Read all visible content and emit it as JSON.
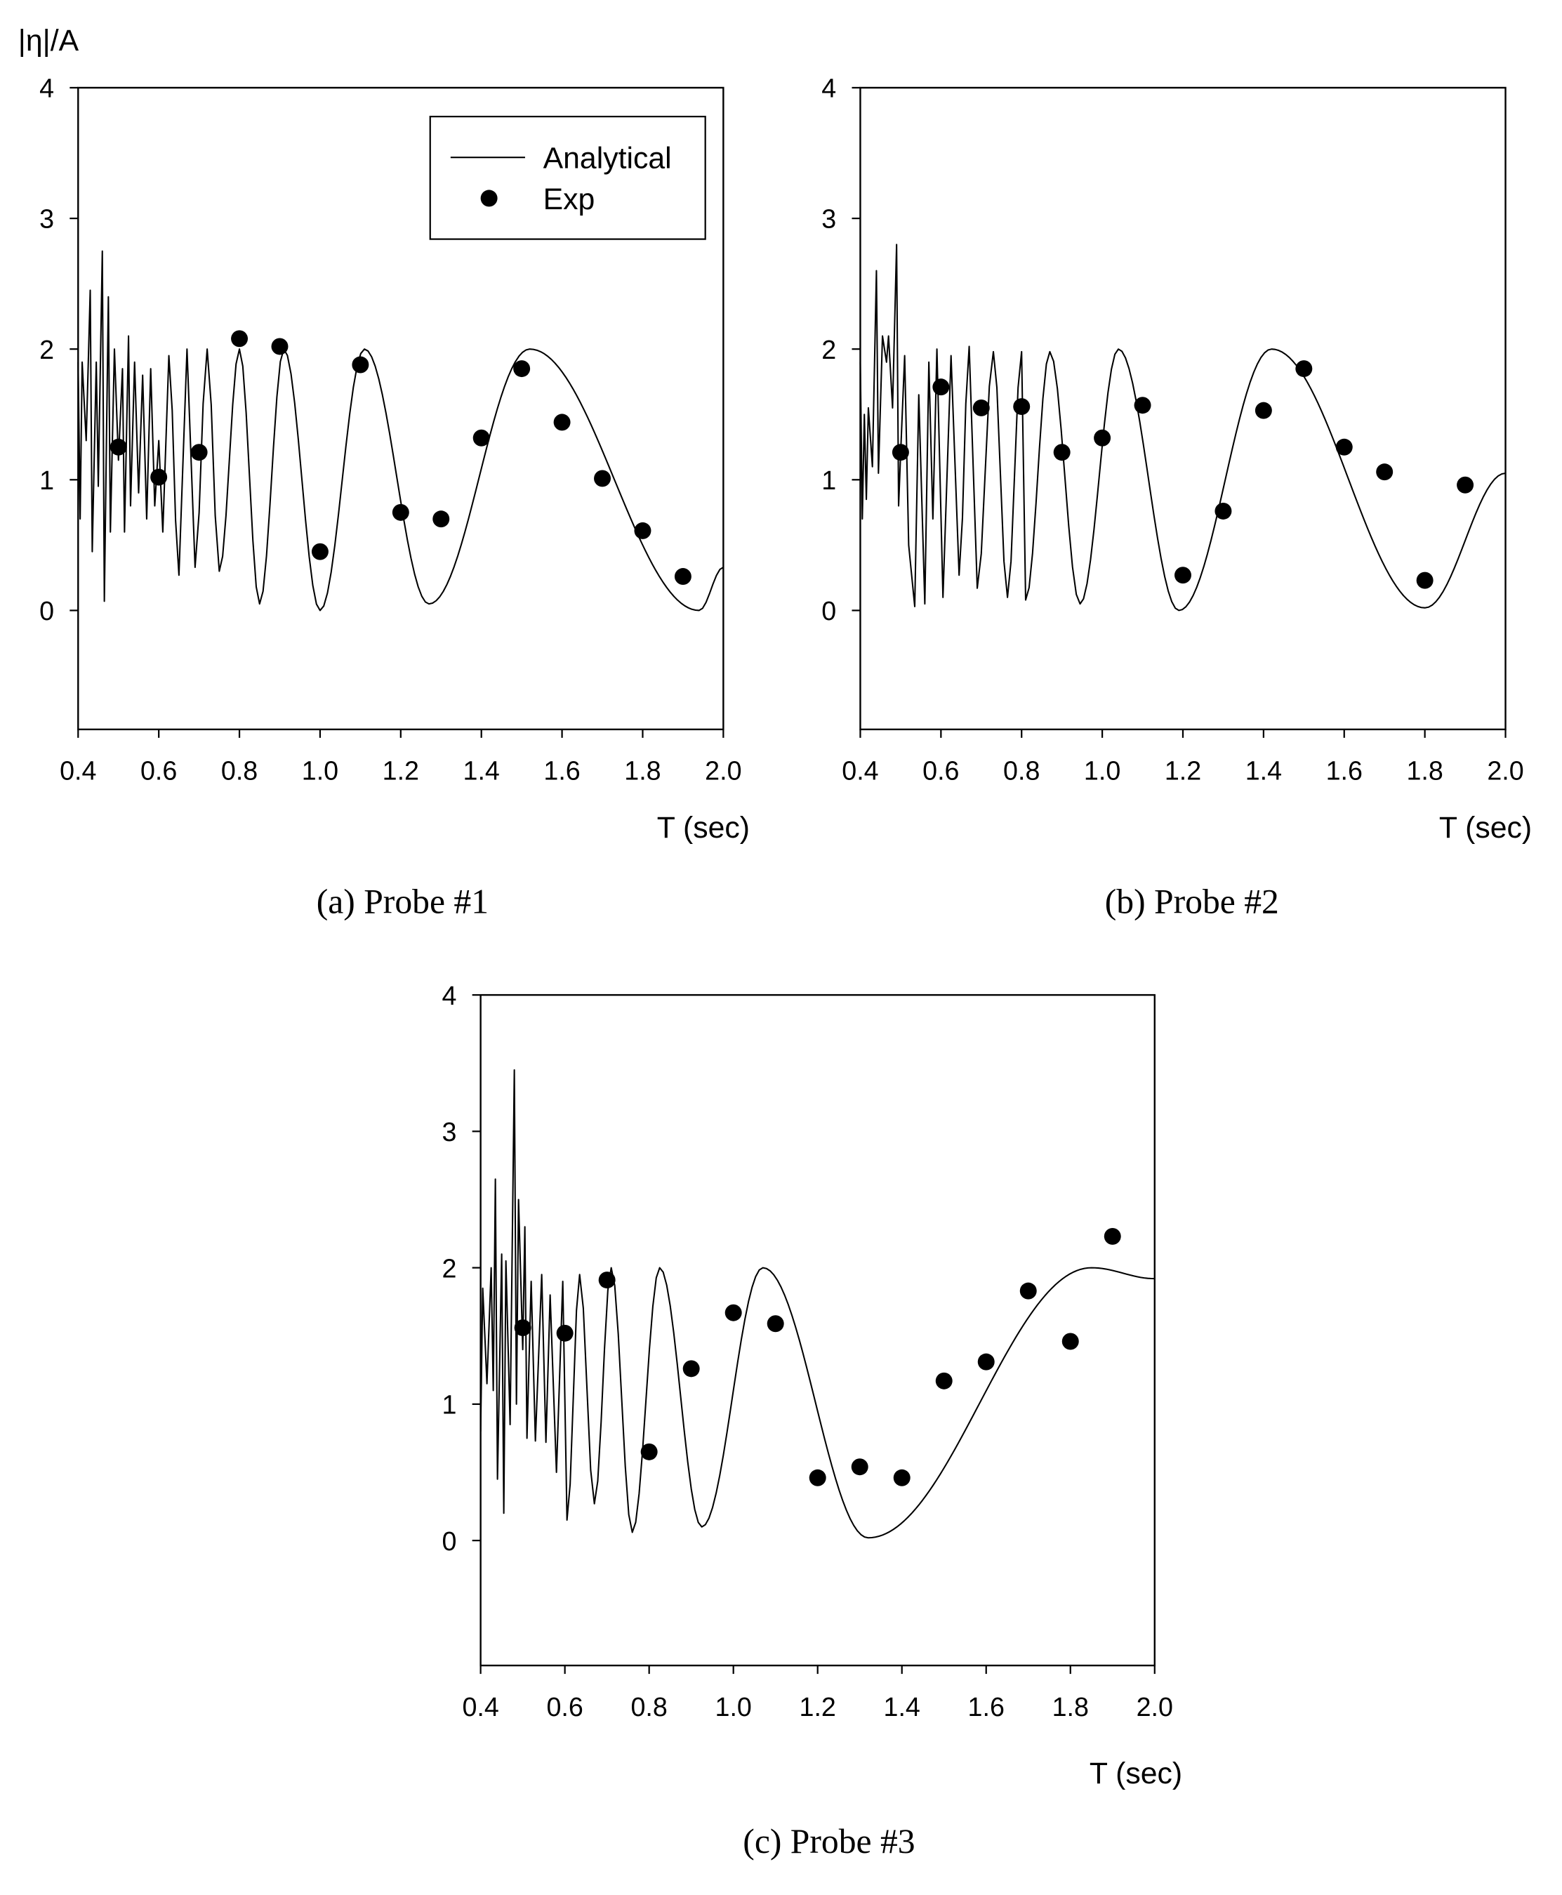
{
  "ylabel": "|η|/A",
  "legend": {
    "analytical": "Analytical",
    "exp": "Exp"
  },
  "chart_data": [
    {
      "type": "line+scatter",
      "caption": "(a)  Probe #1",
      "xlabel": "T (sec)",
      "ylabel": "|η|/A",
      "xlim": [
        0.4,
        2.0
      ],
      "ylim": [
        -0.9,
        4
      ],
      "xticks": [
        "0.4",
        "0.6",
        "0.8",
        "1.0",
        "1.2",
        "1.4",
        "1.6",
        "1.8",
        "2.0"
      ],
      "yticks": [
        "0",
        "1",
        "2",
        "3",
        "4"
      ],
      "legend": "top-right",
      "series": [
        {
          "name": "Analytical",
          "type": "line",
          "points": [
            [
              0.4,
              1.9
            ],
            [
              0.405,
              0.7
            ],
            [
              0.41,
              1.9
            ],
            [
              0.42,
              1.3
            ],
            [
              0.43,
              2.45
            ],
            [
              0.435,
              0.45
            ],
            [
              0.445,
              1.9
            ],
            [
              0.45,
              0.95
            ],
            [
              0.46,
              2.75
            ],
            [
              0.465,
              0.07
            ],
            [
              0.475,
              2.4
            ],
            [
              0.48,
              0.6
            ],
            [
              0.49,
              2.0
            ],
            [
              0.5,
              1.15
            ],
            [
              0.51,
              1.85
            ],
            [
              0.515,
              0.6
            ],
            [
              0.525,
              2.1
            ],
            [
              0.53,
              0.8
            ],
            [
              0.54,
              1.9
            ],
            [
              0.55,
              0.9
            ],
            [
              0.56,
              1.8
            ],
            [
              0.57,
              0.7
            ],
            [
              0.58,
              1.85
            ],
            [
              0.59,
              0.8
            ],
            [
              0.6,
              1.3
            ],
            [
              0.61,
              0.6
            ],
            [
              0.625,
              1.95
            ],
            [
              0.65,
              0.27
            ],
            [
              0.67,
              2.0
            ],
            [
              0.69,
              0.33
            ],
            [
              0.72,
              2.0
            ],
            [
              0.75,
              0.3
            ],
            [
              0.8,
              2.0
            ],
            [
              0.85,
              0.05
            ],
            [
              0.91,
              2.0
            ],
            [
              1.0,
              0.0
            ],
            [
              1.11,
              2.0
            ],
            [
              1.27,
              0.05
            ],
            [
              1.52,
              2.0
            ],
            [
              1.94,
              0.0
            ],
            [
              2.0,
              0.33
            ]
          ]
        },
        {
          "name": "Exp",
          "type": "scatter",
          "points": [
            [
              0.5,
              1.25
            ],
            [
              0.6,
              1.02
            ],
            [
              0.7,
              1.21
            ],
            [
              0.8,
              2.08
            ],
            [
              0.9,
              2.02
            ],
            [
              1.0,
              0.45
            ],
            [
              1.1,
              1.88
            ],
            [
              1.2,
              0.75
            ],
            [
              1.3,
              0.7
            ],
            [
              1.4,
              1.32
            ],
            [
              1.5,
              1.85
            ],
            [
              1.6,
              1.44
            ],
            [
              1.7,
              1.01
            ],
            [
              1.8,
              0.61
            ],
            [
              1.9,
              0.26
            ]
          ]
        }
      ]
    },
    {
      "type": "line+scatter",
      "caption": "(b) Probe #2",
      "xlabel": "T (sec)",
      "xlim": [
        0.4,
        2.0
      ],
      "ylim": [
        -0.9,
        4
      ],
      "xticks": [
        "0.4",
        "0.6",
        "0.8",
        "1.0",
        "1.2",
        "1.4",
        "1.6",
        "1.8",
        "2.0"
      ],
      "yticks": [
        "0",
        "1",
        "2",
        "3",
        "4"
      ],
      "series": [
        {
          "name": "Analytical",
          "type": "line",
          "points": [
            [
              0.4,
              1.9
            ],
            [
              0.405,
              0.7
            ],
            [
              0.41,
              1.5
            ],
            [
              0.415,
              0.85
            ],
            [
              0.42,
              1.55
            ],
            [
              0.43,
              1.1
            ],
            [
              0.44,
              2.6
            ],
            [
              0.445,
              1.05
            ],
            [
              0.455,
              2.1
            ],
            [
              0.465,
              1.9
            ],
            [
              0.47,
              2.1
            ],
            [
              0.48,
              1.55
            ],
            [
              0.49,
              2.8
            ],
            [
              0.495,
              0.8
            ],
            [
              0.5,
              1.2
            ],
            [
              0.51,
              1.95
            ],
            [
              0.52,
              0.5
            ],
            [
              0.535,
              0.03
            ],
            [
              0.545,
              1.65
            ],
            [
              0.56,
              0.05
            ],
            [
              0.57,
              1.9
            ],
            [
              0.58,
              0.7
            ],
            [
              0.59,
              2.0
            ],
            [
              0.605,
              0.1
            ],
            [
              0.625,
              1.95
            ],
            [
              0.645,
              0.27
            ],
            [
              0.67,
              2.02
            ],
            [
              0.69,
              0.17
            ],
            [
              0.73,
              1.98
            ],
            [
              0.765,
              0.1
            ],
            [
              0.8,
              1.98
            ],
            [
              0.81,
              0.08
            ],
            [
              0.87,
              1.98
            ],
            [
              0.945,
              0.05
            ],
            [
              1.04,
              2.0
            ],
            [
              1.19,
              0.0
            ],
            [
              1.42,
              2.0
            ],
            [
              1.8,
              0.02
            ],
            [
              2.0,
              1.05
            ]
          ]
        },
        {
          "name": "Exp",
          "type": "scatter",
          "points": [
            [
              0.5,
              1.21
            ],
            [
              0.6,
              1.71
            ],
            [
              0.7,
              1.55
            ],
            [
              0.8,
              1.56
            ],
            [
              0.9,
              1.21
            ],
            [
              1.0,
              1.32
            ],
            [
              1.1,
              1.57
            ],
            [
              1.2,
              0.27
            ],
            [
              1.3,
              0.76
            ],
            [
              1.4,
              1.53
            ],
            [
              1.5,
              1.85
            ],
            [
              1.6,
              1.25
            ],
            [
              1.7,
              1.06
            ],
            [
              1.8,
              0.23
            ],
            [
              1.9,
              0.96
            ]
          ]
        }
      ]
    },
    {
      "type": "line+scatter",
      "caption": "(c)  Probe #3",
      "xlabel": "T (sec)",
      "xlim": [
        0.4,
        2.0
      ],
      "ylim": [
        -0.9,
        4
      ],
      "xticks": [
        "0.4",
        "0.6",
        "0.8",
        "1.0",
        "1.2",
        "1.4",
        "1.6",
        "1.8",
        "2.0"
      ],
      "yticks": [
        "0",
        "1",
        "2",
        "3",
        "4"
      ],
      "series": [
        {
          "name": "Analytical",
          "type": "line",
          "points": [
            [
              0.4,
              0.8
            ],
            [
              0.405,
              1.85
            ],
            [
              0.415,
              1.15
            ],
            [
              0.425,
              2.0
            ],
            [
              0.43,
              1.1
            ],
            [
              0.435,
              2.65
            ],
            [
              0.44,
              0.45
            ],
            [
              0.45,
              2.1
            ],
            [
              0.455,
              0.2
            ],
            [
              0.46,
              2.05
            ],
            [
              0.47,
              0.85
            ],
            [
              0.48,
              3.45
            ],
            [
              0.485,
              1.0
            ],
            [
              0.49,
              2.5
            ],
            [
              0.5,
              1.4
            ],
            [
              0.505,
              2.3
            ],
            [
              0.51,
              0.75
            ],
            [
              0.52,
              1.9
            ],
            [
              0.53,
              0.73
            ],
            [
              0.545,
              1.95
            ],
            [
              0.555,
              0.72
            ],
            [
              0.565,
              1.8
            ],
            [
              0.58,
              0.5
            ],
            [
              0.595,
              1.9
            ],
            [
              0.605,
              0.15
            ],
            [
              0.635,
              1.95
            ],
            [
              0.67,
              0.27
            ],
            [
              0.71,
              2.0
            ],
            [
              0.76,
              0.06
            ],
            [
              0.825,
              2.0
            ],
            [
              0.925,
              0.1
            ],
            [
              1.07,
              2.0
            ],
            [
              1.32,
              0.02
            ],
            [
              1.85,
              2.0
            ],
            [
              2.0,
              1.92
            ]
          ]
        },
        {
          "name": "Exp",
          "type": "scatter",
          "points": [
            [
              0.5,
              1.56
            ],
            [
              0.6,
              1.52
            ],
            [
              0.7,
              1.91
            ],
            [
              0.8,
              0.65
            ],
            [
              0.9,
              1.26
            ],
            [
              1.0,
              1.67
            ],
            [
              1.1,
              1.59
            ],
            [
              1.2,
              0.46
            ],
            [
              1.3,
              0.54
            ],
            [
              1.4,
              0.46
            ],
            [
              1.5,
              1.17
            ],
            [
              1.6,
              1.31
            ],
            [
              1.7,
              1.83
            ],
            [
              1.8,
              1.46
            ],
            [
              1.9,
              2.23
            ]
          ]
        }
      ]
    }
  ]
}
